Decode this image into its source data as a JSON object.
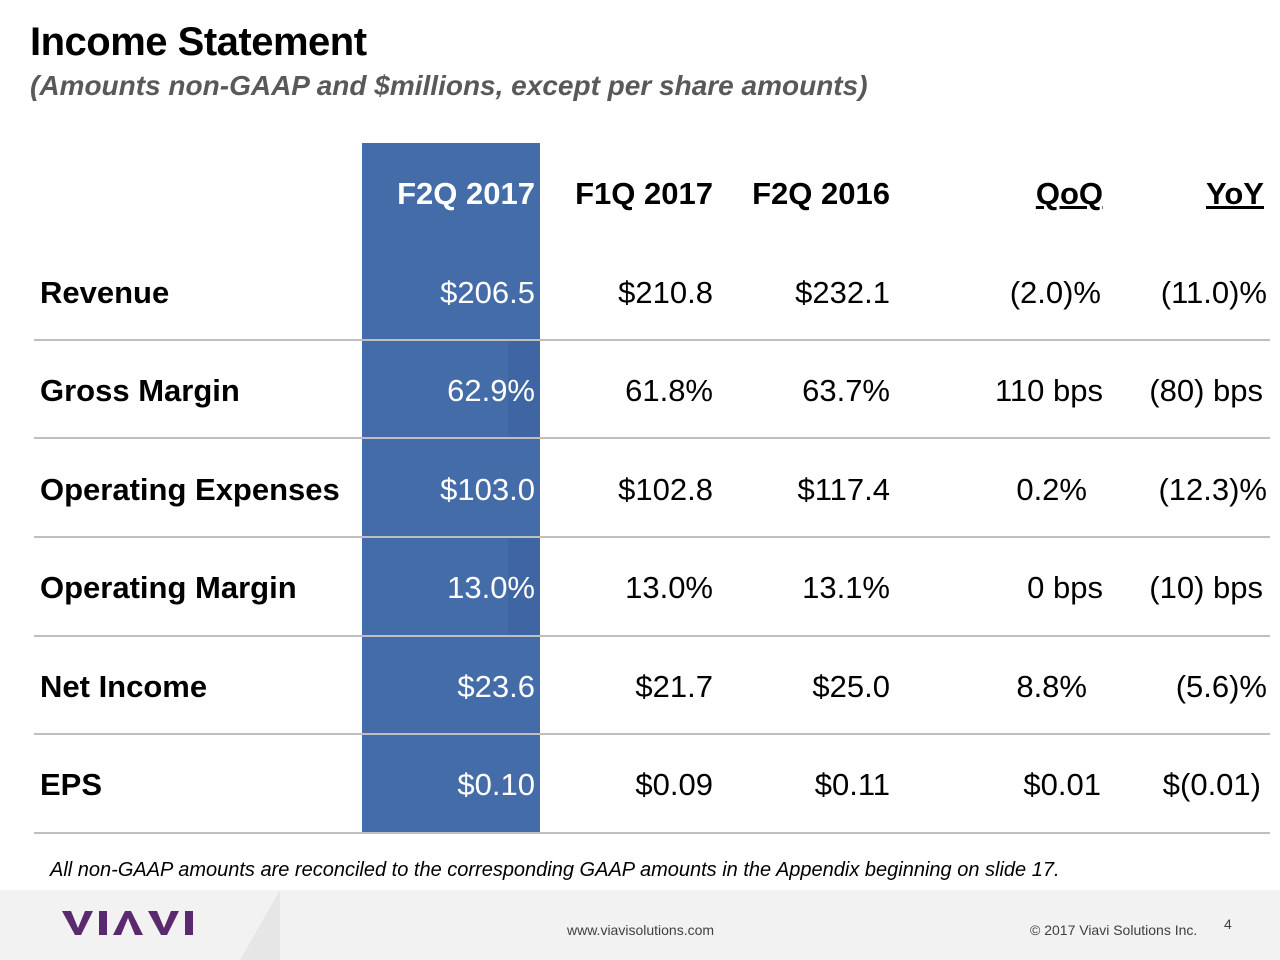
{
  "header": {
    "title": "Income Statement",
    "subtitle": "(Amounts non-GAAP and $millions, except per share amounts)"
  },
  "table": {
    "columns": [
      "F2Q 2017",
      "F1Q 2017",
      "F2Q 2016",
      "QoQ",
      "YoY"
    ],
    "rows": [
      {
        "label": "Revenue",
        "values": [
          "$206.5",
          "$210.8",
          "$232.1",
          "(2.0)%",
          "(11.0)%"
        ]
      },
      {
        "label": "Gross Margin",
        "values": [
          "62.9%",
          "61.8%",
          "63.7%",
          "110 bps",
          "(80) bps"
        ]
      },
      {
        "label": "Operating Expenses",
        "values": [
          "$103.0",
          "$102.8",
          "$117.4",
          "0.2%",
          "(12.3)%"
        ]
      },
      {
        "label": "Operating Margin",
        "values": [
          "13.0%",
          "13.0%",
          "13.1%",
          "0 bps",
          "(10) bps"
        ]
      },
      {
        "label": "Net Income",
        "values": [
          "$23.6",
          "$21.7",
          "$25.0",
          "8.8%",
          "(5.6)%"
        ]
      },
      {
        "label": "EPS",
        "values": [
          "$0.10",
          "$0.09",
          "$0.11",
          "$0.01",
          "$(0.01)"
        ]
      }
    ]
  },
  "note": "All non-GAAP amounts are reconciled to the corresponding GAAP amounts in the Appendix beginning on slide 17.",
  "footer": {
    "logo_text": "VIAVI",
    "url": "www.viavisolutions.com",
    "copyright": "© 2017 Viavi Solutions Inc.",
    "page_number": "4"
  },
  "colors": {
    "highlight": "#446ca9",
    "logo": "#5b2a6e"
  }
}
